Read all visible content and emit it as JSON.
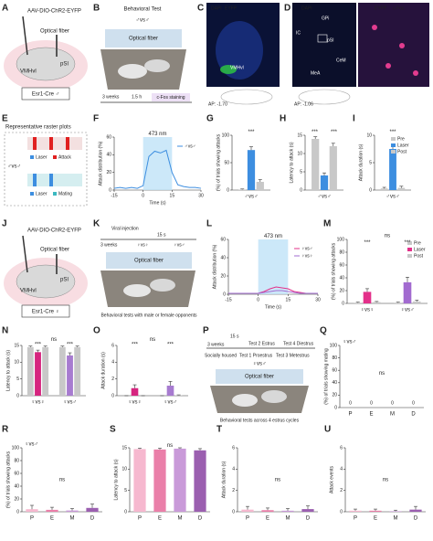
{
  "panel_labels": [
    "A",
    "B",
    "C",
    "D",
    "E",
    "F",
    "G",
    "H",
    "I",
    "J",
    "K",
    "L",
    "M",
    "N",
    "O",
    "P",
    "Q",
    "R",
    "S",
    "T",
    "U"
  ],
  "panel_a": {
    "virus": "AAV-DIO-ChR2-EYFP",
    "fiber": "Optical fiber",
    "source": "VMHvl",
    "target": "pSI",
    "mouse": "Esr1-Cre ♂"
  },
  "panel_b": {
    "title": "Behavioral Test",
    "pair": "♂vs♂",
    "fiber": "Optical fiber",
    "wait": "3 weeks",
    "delay": "1.5 h",
    "staining": "c-Fos staining"
  },
  "panel_c": {
    "stain1": "DAPI",
    "stain2": "EYFP",
    "region": "VMHvl",
    "ap": "AP: -1.70"
  },
  "panel_d": {
    "stain1": "DAPI",
    "stain2": "EYFP",
    "stain3": "c-Fos",
    "regions": [
      "GPi",
      "IC",
      "pSI",
      "CeM",
      "MeA"
    ],
    "ap": "AP: -1.06"
  },
  "panel_e": {
    "title": "Representative raster plots",
    "pair": "♂vs♂",
    "legend_top": [
      "Laser",
      "Attack"
    ],
    "legend_bottom": [
      "Laser",
      "Mating"
    ]
  },
  "panel_j": {
    "virus": "AAV-DIO-ChR2-EYFP",
    "fiber": "Optical fiber",
    "source": "VMHvl",
    "target": "pSI",
    "mouse": "Esr1-Cre ♀"
  },
  "panel_k": {
    "injection": "Viral injection",
    "pulse": "15 s",
    "wait": "3 weeks",
    "pairs": [
      "♀vs♀",
      "♀vs♂"
    ],
    "fiber": "Optical fiber",
    "caption": "Behavioral tests with male or female opponents"
  },
  "panel_p": {
    "pulse": "15 s",
    "wait": "3 weeks",
    "housing": "Socially housed",
    "tests": [
      "Test 1 Proestrus",
      "Test 2 Estrus",
      "Test 3 Metestrus",
      "Test 4 Diestrus"
    ],
    "pair": "♀vs♂",
    "fiber": "Optical fiber",
    "caption": "Behavioral tests across 4 estrus cycles"
  },
  "chart_data": [
    {
      "type": "line",
      "x": [
        -15,
        -12,
        -9,
        -6,
        -3,
        0,
        3,
        6,
        9,
        12,
        15,
        18,
        21,
        24,
        27,
        30
      ],
      "laser_on": [
        0,
        15
      ],
      "series": [
        {
          "name": "♂vs♂",
          "color": "#3d8ee0",
          "values": [
            2,
            3,
            2,
            3,
            2,
            5,
            38,
            44,
            42,
            45,
            20,
            6,
            4,
            3,
            3,
            2
          ]
        }
      ],
      "xlim": [
        -15,
        30
      ],
      "xticks": [
        -15,
        0,
        15,
        30
      ],
      "ylim": [
        0,
        60
      ],
      "yticks": [
        0,
        20,
        40,
        60
      ],
      "x_label": "Time (s)",
      "y_label": "Attack distribution (%)",
      "annotations": [
        "473 nm"
      ],
      "legend": true
    },
    {
      "type": "grouped_bar",
      "categories": [
        "♂vs♂"
      ],
      "series": [
        {
          "color": "#c8c8c8",
          "values": [
            1
          ],
          "errors": [
            1
          ]
        },
        {
          "color": "#3d8ee0",
          "values": [
            73
          ],
          "errors": [
            6
          ]
        },
        {
          "color": "#c8c8c8",
          "values": [
            15
          ],
          "errors": [
            4
          ]
        }
      ],
      "ylim": [
        0,
        100
      ],
      "yticks": [
        0,
        50,
        100
      ],
      "y_label": "(%) of trials showing attacks",
      "annotations": [
        "***"
      ]
    },
    {
      "type": "grouped_bar",
      "categories": [
        "♂vs♂"
      ],
      "series": [
        {
          "color": "#c8c8c8",
          "values": [
            14
          ],
          "errors": [
            0.6
          ]
        },
        {
          "color": "#3d8ee0",
          "values": [
            4
          ],
          "errors": [
            0.7
          ]
        },
        {
          "color": "#c8c8c8",
          "values": [
            12
          ],
          "errors": [
            0.8
          ]
        }
      ],
      "ylim": [
        0,
        15
      ],
      "yticks": [
        0,
        5,
        10,
        15
      ],
      "y_label": "Latency to attack (s)",
      "annotations": [
        "***",
        "***"
      ]
    },
    {
      "type": "grouped_bar",
      "categories": [
        "♂vs♂"
      ],
      "series": [
        {
          "name": "Pre",
          "color": "#c8c8c8",
          "values": [
            0.3
          ],
          "errors": [
            0.2
          ]
        },
        {
          "name": "Laser",
          "color": "#3d8ee0",
          "values": [
            7.5
          ],
          "errors": [
            0.6
          ]
        },
        {
          "name": "Post",
          "color": "#c8c8c8",
          "values": [
            0.4
          ],
          "errors": [
            0.3
          ]
        }
      ],
      "ylim": [
        0,
        10
      ],
      "yticks": [
        0,
        5,
        10
      ],
      "y_label": "Attack duration (s)",
      "annotations": [
        "***"
      ],
      "legend": true
    },
    {
      "type": "line",
      "x": [
        -15,
        -12,
        -9,
        -6,
        -3,
        0,
        3,
        6,
        9,
        12,
        15,
        18,
        21,
        24,
        27,
        30
      ],
      "laser_on": [
        0,
        15
      ],
      "series": [
        {
          "name": "♀vs♂",
          "color": "#e3308a",
          "values": [
            1,
            1,
            1,
            1,
            1,
            1,
            3,
            6,
            8,
            7,
            6,
            3,
            2,
            1,
            1,
            1
          ]
        },
        {
          "name": "♀vs♀",
          "color": "#a26bd0",
          "values": [
            1,
            1,
            1,
            1,
            1,
            1,
            2,
            3,
            4,
            4,
            3,
            2,
            1,
            1,
            1,
            1
          ]
        }
      ],
      "xlim": [
        -15,
        30
      ],
      "xticks": [
        -15,
        0,
        15,
        30
      ],
      "ylim": [
        0,
        60
      ],
      "yticks": [
        0,
        20,
        40,
        60
      ],
      "x_label": "Time (s)",
      "y_label": "Attack distribution (%)",
      "annotations": [
        "473 nm"
      ],
      "legend": true
    },
    {
      "type": "grouped_bar",
      "categories": [
        "♀vs♀",
        "♀vs♂"
      ],
      "series": [
        {
          "name": "Pre",
          "color": "#c8c8c8",
          "values": [
            1,
            1
          ],
          "errors": [
            1,
            1
          ]
        },
        {
          "name": "Laser",
          "color": [
            "#e3308a",
            "#a26bd0"
          ],
          "values": [
            18,
            33
          ],
          "errors": [
            5,
            8
          ]
        },
        {
          "name": "Post",
          "color": "#c8c8c8",
          "values": [
            2,
            3
          ],
          "errors": [
            1,
            2
          ]
        }
      ],
      "ylim": [
        0,
        100
      ],
      "yticks": [
        0,
        20,
        40,
        60,
        80,
        100
      ],
      "y_label": "(%) of trials showing attacks",
      "annotations": [
        "ns",
        "***",
        "***"
      ],
      "legend": true
    },
    {
      "type": "grouped_bar",
      "categories": [
        "♀vs♀",
        "♀vs♂"
      ],
      "series": [
        {
          "color": "#c8c8c8",
          "values": [
            14.5,
            14.5
          ],
          "errors": [
            0.3,
            0.3
          ]
        },
        {
          "color": [
            "#d6257f",
            "#a77bd0"
          ],
          "values": [
            13,
            12
          ],
          "errors": [
            0.6,
            0.8
          ]
        },
        {
          "color": "#c8c8c8",
          "values": [
            14.5,
            14.5
          ],
          "errors": [
            0.3,
            0.3
          ]
        }
      ],
      "ylim": [
        0,
        15
      ],
      "yticks": [
        0,
        5,
        10,
        15
      ],
      "y_label": "Latency to attack (s)",
      "annotations": [
        "ns",
        "***",
        "***"
      ]
    },
    {
      "type": "grouped_bar",
      "categories": [
        "♀vs♀",
        "♀vs♂"
      ],
      "series": [
        {
          "color": "#c8c8c8",
          "values": [
            0,
            0
          ],
          "errors": [
            0,
            0
          ]
        },
        {
          "color": [
            "#d6257f",
            "#a77bd0"
          ],
          "values": [
            0.9,
            1.2
          ],
          "errors": [
            0.4,
            0.5
          ]
        },
        {
          "color": "#c8c8c8",
          "values": [
            0,
            0.05
          ],
          "errors": [
            0,
            0.05
          ]
        }
      ],
      "ylim": [
        0,
        6
      ],
      "yticks": [
        0,
        2,
        4,
        6
      ],
      "y_label": "Attack duration (s)",
      "annotations": [
        "ns",
        "***",
        "***"
      ]
    },
    {
      "type": "bar",
      "categories": [
        "P",
        "E",
        "M",
        "D"
      ],
      "colors": [
        "#f6b8cf",
        "#ea7fa9",
        "#c99ad9",
        "#9b5fb0"
      ],
      "values": [
        0,
        0,
        0,
        0
      ],
      "show_values": true,
      "ylim": [
        0,
        100
      ],
      "yticks": [
        0,
        20,
        40,
        60,
        80,
        100
      ],
      "y_label": "(%) of trials showing mating",
      "subtitle": "♀vs♂",
      "annotations": [
        "ns"
      ]
    },
    {
      "type": "bar",
      "categories": [
        "P",
        "E",
        "M",
        "D"
      ],
      "colors": [
        "#f6b8cf",
        "#ea7fa9",
        "#c99ad9",
        "#9b5fb0"
      ],
      "values": [
        4,
        3,
        2,
        6
      ],
      "errors": [
        6,
        4,
        3,
        6
      ],
      "ylim": [
        0,
        100
      ],
      "yticks": [
        0,
        20,
        40,
        60,
        80,
        100
      ],
      "y_label": "(%) of trials showing attacks",
      "subtitle": "♀vs♂",
      "annotations": [
        "ns"
      ]
    },
    {
      "type": "bar",
      "categories": [
        "P",
        "E",
        "M",
        "D"
      ],
      "colors": [
        "#f6b8cf",
        "#ea7fa9",
        "#c99ad9",
        "#9b5fb0"
      ],
      "values": [
        14.7,
        14.6,
        14.8,
        14.4
      ],
      "errors": [
        0.2,
        0.3,
        0.2,
        0.4
      ],
      "ylim": [
        0,
        15
      ],
      "yticks": [
        0,
        5,
        10,
        15
      ],
      "y_label": "Latency to attack (s)",
      "annotations": [
        "ns"
      ]
    },
    {
      "type": "bar",
      "categories": [
        "P",
        "E",
        "M",
        "D"
      ],
      "colors": [
        "#f6b8cf",
        "#ea7fa9",
        "#c99ad9",
        "#9b5fb0"
      ],
      "values": [
        0.2,
        0.15,
        0.1,
        0.25
      ],
      "errors": [
        0.3,
        0.2,
        0.2,
        0.3
      ],
      "ylim": [
        0,
        6
      ],
      "yticks": [
        0,
        2,
        4,
        6
      ],
      "y_label": "Attack duration (s)",
      "annotations": [
        "ns"
      ]
    },
    {
      "type": "bar",
      "categories": [
        "P",
        "E",
        "M",
        "D"
      ],
      "colors": [
        "#f6b8cf",
        "#ea7fa9",
        "#c99ad9",
        "#9b5fb0"
      ],
      "values": [
        0.1,
        0.1,
        0.05,
        0.2
      ],
      "errors": [
        0.15,
        0.15,
        0.1,
        0.3
      ],
      "ylim": [
        0,
        6
      ],
      "yticks": [
        0,
        2,
        4,
        6
      ],
      "y_label": "Attack events",
      "annotations": [
        "ns"
      ]
    }
  ]
}
